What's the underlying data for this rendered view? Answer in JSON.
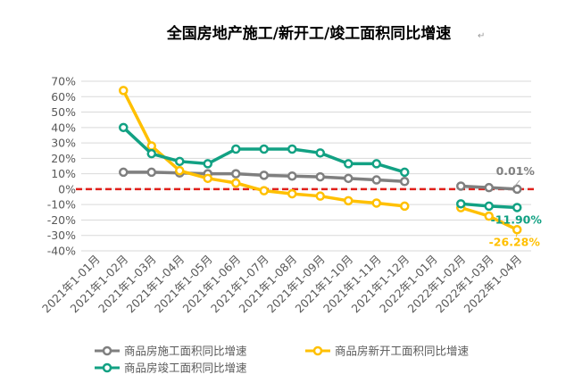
{
  "chart_data": {
    "type": "line",
    "title": "全国房地产施工/新开工/竣工面积同比增速",
    "title_mark": "↵",
    "xlabel": "",
    "ylabel": "",
    "ylim": [
      -40,
      70
    ],
    "yticks": [
      70,
      60,
      50,
      40,
      30,
      20,
      10,
      0,
      -10,
      -20,
      -30,
      -40
    ],
    "ytick_labels": [
      "70%",
      "60%",
      "50%",
      "40%",
      "30%",
      "20%",
      "10%",
      "0%",
      "-10%",
      "-20%",
      "-30%",
      "-40%"
    ],
    "grid": true,
    "legend_position": "bottom",
    "categories": [
      "2021年1-01月",
      "2021年1-02月",
      "2021年1-03月",
      "2021年1-04月",
      "2021年1-05月",
      "2021年1-06月",
      "2021年1-07月",
      "2021年1-08月",
      "2021年1-09月",
      "2021年1-10月",
      "2021年1-11月",
      "2021年1-12月",
      "2022年1-01月",
      "2022年1-02月",
      "2022年1-03月",
      "2022年1-04月"
    ],
    "reference_line": {
      "value": 0,
      "color": "#e0201b",
      "style": "dashed"
    },
    "series": [
      {
        "name": "商品房施工面积同比增速",
        "color": "#7f7f7f",
        "values": [
          null,
          11,
          11,
          10.5,
          10,
          10,
          9,
          8.5,
          8,
          7,
          6,
          5,
          null,
          2,
          1,
          0.01
        ]
      },
      {
        "name": "商品房新开工面积同比增速",
        "color": "#ffc000",
        "values": [
          null,
          64,
          28,
          12,
          7,
          4,
          -1,
          -3,
          -4.5,
          -7.5,
          -9,
          -11,
          null,
          -12,
          -17.5,
          -26.28
        ]
      },
      {
        "name": "商品房竣工面积同比增速",
        "color": "#12a183",
        "values": [
          null,
          40,
          23,
          18,
          16.5,
          26,
          26,
          26,
          23.5,
          16.5,
          16.5,
          11,
          null,
          -9.5,
          -11,
          -11.9
        ]
      }
    ],
    "annotations": [
      {
        "series": 0,
        "index": 15,
        "text": "0.01%",
        "color": "#7f7f7f"
      },
      {
        "series": 2,
        "index": 15,
        "text": "-11.90%",
        "color": "#12a183"
      },
      {
        "series": 1,
        "index": 15,
        "text": "-26.28%",
        "color": "#ffc000"
      }
    ]
  }
}
